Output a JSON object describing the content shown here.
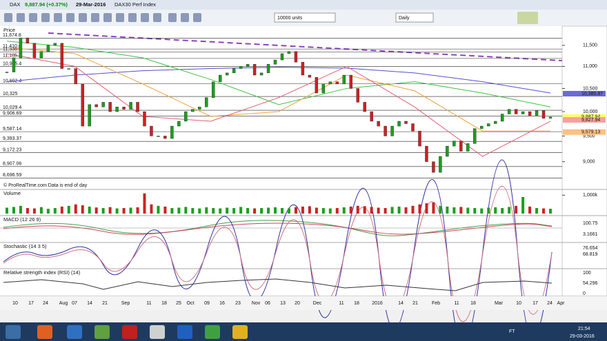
{
  "title_bar": {
    "symbol": "DAX",
    "price": "9,887.94 (+0.37%)",
    "date": "29-Mar-2016",
    "name": "DAX30 Perf Index"
  },
  "toolbar": {
    "units": "10000 units",
    "period": "Daily"
  },
  "price_panel": {
    "title": "Price",
    "footer": "© ProRealTime.com Data is end of day",
    "log_scale": true,
    "ylim": [
      8650,
      11800
    ],
    "yticks": [
      {
        "value": 11500,
        "label": "11,500"
      },
      {
        "value": 11000,
        "label": "11,000"
      },
      {
        "value": 10500,
        "label": "10,500"
      },
      {
        "value": 10000,
        "label": "10,000"
      },
      {
        "value": 9500,
        "label": "9,500"
      },
      {
        "value": 9000,
        "label": "9,000"
      }
    ],
    "levels": [
      {
        "value": 11674.8,
        "label": "11,674.8"
      },
      {
        "value": 11410.6,
        "label": "11,410.6"
      },
      {
        "value": 11336.5,
        "label": "11,336.5"
      },
      {
        "value": 11185.3,
        "label": "11,185.3"
      },
      {
        "value": 10995.4,
        "label": "10,995.4"
      },
      {
        "value": 10602.4,
        "label": "10,602.4"
      },
      {
        "value": 10325,
        "label": "10,325"
      },
      {
        "value": 10029.4,
        "label": "10,029.4"
      },
      {
        "value": 9906.69,
        "label": "9,906.69"
      },
      {
        "value": 9587.14,
        "label": "9,587.14"
      },
      {
        "value": 9393.37,
        "label": "9,393.37"
      },
      {
        "value": 9172.23,
        "label": "9,172.23"
      },
      {
        "value": 8907.06,
        "label": "8,907.06"
      },
      {
        "value": 8696.59,
        "label": "8,696.59"
      }
    ],
    "markers": [
      {
        "value": 10385.87,
        "label": "10,385.87",
        "color": "#6a6ad8"
      },
      {
        "value": 9887.94,
        "label": "9,887.94",
        "color": "#ffff66"
      },
      {
        "value": 9827.94,
        "label": "9,827.94",
        "color": "#f7a0a0"
      },
      {
        "value": 9579.13,
        "label": "9,579.13",
        "color": "#ffc080"
      }
    ],
    "closes": [
      10870,
      11200,
      11680,
      11550,
      11200,
      11350,
      11500,
      11550,
      10950,
      10950,
      10600,
      9700,
      10150,
      10100,
      10200,
      10000,
      10100,
      10050,
      10200,
      10000,
      9700,
      9500,
      9500,
      9450,
      9700,
      9800,
      10000,
      10050,
      10100,
      10300,
      10650,
      10800,
      10850,
      10950,
      11000,
      11050,
      10800,
      10850,
      11050,
      11150,
      11300,
      11350,
      11100,
      10800,
      10750,
      10400,
      10600,
      10650,
      10600,
      10800,
      10500,
      10200,
      10000,
      9800,
      9700,
      9500,
      9700,
      9800,
      9750,
      9600,
      9300,
      9000,
      8800,
      9100,
      9300,
      9400,
      9200,
      9350,
      9650,
      9700,
      9750,
      9800,
      9950,
      10050,
      9950,
      10000,
      9920,
      10020,
      9860,
      9887.94
    ],
    "averages": [
      {
        "color": "#5050d0",
        "values": [
          10650,
          10800,
          10900,
          10950,
          10980,
          10960,
          10850,
          10650,
          10400
        ]
      },
      {
        "color": "#40c040",
        "values": [
          11600,
          11450,
          11200,
          10700,
          10150,
          10500,
          10650,
          10400,
          10100
        ]
      },
      {
        "color": "#f0a030",
        "values": [
          11450,
          11300,
          10600,
          9900,
          10000,
          10800,
          10450,
          9600,
          9600
        ]
      },
      {
        "color": "#e06070",
        "values": [
          11300,
          11000,
          9900,
          9800,
          10300,
          11000,
          10100,
          9100,
          9800
        ]
      }
    ]
  },
  "volume_panel": {
    "title": "Volume",
    "ylim": [
      0,
      1200
    ],
    "yticks": [
      {
        "value": 1000,
        "label": "1,000k"
      }
    ],
    "values": [
      320,
      360,
      420,
      300,
      280,
      350,
      260,
      300,
      380,
      420,
      500,
      450,
      380,
      330,
      300,
      350,
      280,
      300,
      320,
      340,
      1100,
      500,
      420,
      380,
      300,
      320,
      360,
      300,
      280,
      340,
      300,
      280,
      320,
      300,
      360,
      300,
      280,
      300,
      320,
      340,
      300,
      280,
      350,
      380,
      400,
      320,
      300,
      280,
      300,
      340,
      380,
      420,
      400,
      360,
      320,
      300,
      360,
      380,
      340,
      420,
      500,
      560,
      600,
      420,
      380,
      340,
      360,
      320,
      300,
      280,
      320,
      340,
      300,
      360,
      420,
      900,
      380,
      300,
      280,
      260
    ]
  },
  "macd_panel": {
    "title": "MACD (12 26 9)",
    "labels": [
      "100.75",
      "3.1661"
    ]
  },
  "stochastic_panel": {
    "title": "Stochastic (14 3 5)",
    "labels": [
      "76.654",
      "68.819"
    ]
  },
  "rsi_panel": {
    "title": "Relative strength index (RSI) (14)",
    "labels": [
      "100",
      "54.296",
      "0"
    ]
  },
  "x_axis": {
    "labels": [
      "10",
      "17",
      "24",
      "Aug",
      "07",
      "14",
      "21",
      "Sep",
      "11",
      "18",
      "25",
      "Oct",
      "09",
      "16",
      "23",
      "Nov",
      "06",
      "13",
      "20",
      "Dec",
      "11",
      "18",
      "2016",
      "14",
      "21",
      "Feb",
      "11",
      "18",
      "Mar",
      "10",
      "17",
      "24",
      "Apr"
    ]
  },
  "taskbar": {
    "lang": "FT",
    "time": "21:54",
    "date": "29-03-2016"
  }
}
